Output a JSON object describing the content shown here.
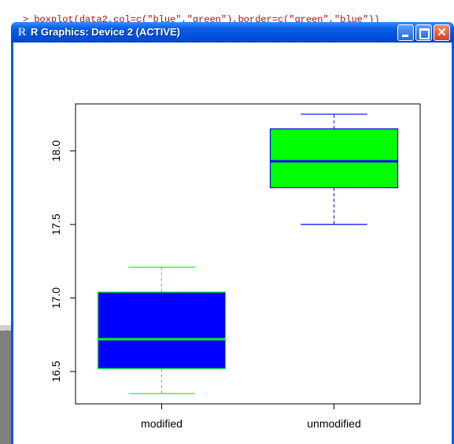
{
  "console": {
    "command_prompt": ">",
    "command": "boxplot(data2,col=c(\"blue\",\"green\"),border=c(\"green\",\"blue\"))",
    "cursor_prompt": ">"
  },
  "window": {
    "title": "R Graphics: Device 2 (ACTIVE)",
    "app_icon": "r-logo-icon",
    "minimize_icon": "minimize-icon",
    "maximize_icon": "maximize-icon",
    "close_icon": "close-icon",
    "close_glyph": "✕"
  },
  "colors": {
    "titlebar": "#0a5fe6",
    "console_text": "#cc0000"
  },
  "chart_data": {
    "type": "boxplot",
    "title": "",
    "xlabel": "",
    "ylabel": "",
    "categories": [
      "modified",
      "unmodified"
    ],
    "boxes": [
      {
        "category": "modified",
        "fill": "#0000ff",
        "border": "#00ff00",
        "whisker_low": 16.35,
        "q1": 16.52,
        "median": 16.72,
        "q3": 17.04,
        "whisker_high": 17.21
      },
      {
        "category": "unmodified",
        "fill": "#00ff00",
        "border": "#0000ff",
        "whisker_low": 17.5,
        "q1": 17.75,
        "median": 17.93,
        "q3": 18.15,
        "whisker_high": 18.25
      }
    ],
    "yticks": [
      "16.5",
      "17.0",
      "17.5",
      "18.0"
    ],
    "ylim": [
      16.28,
      18.32
    ],
    "grid": false
  }
}
